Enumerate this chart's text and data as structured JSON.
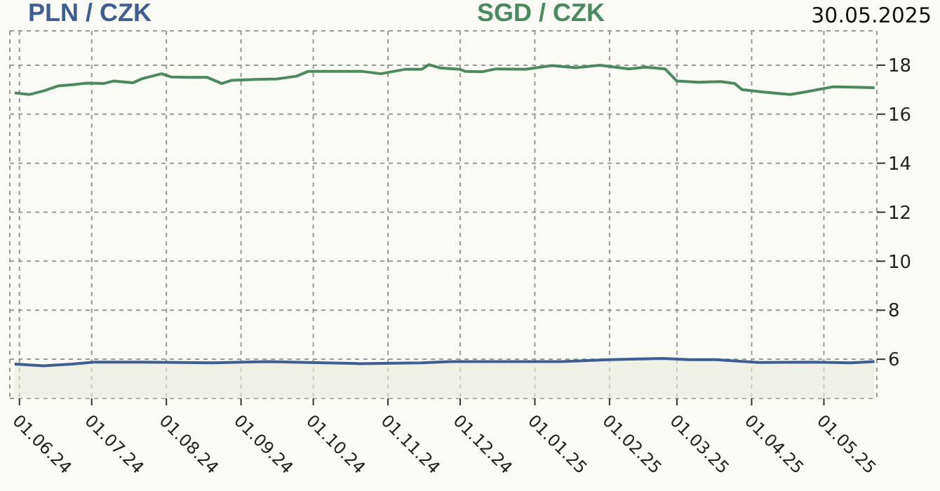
{
  "chart_data": {
    "type": "line",
    "annotations": [
      "30.05.2025"
    ],
    "series": [
      {
        "name": "PLN / CZK",
        "color": "#3f5f93",
        "type": "area",
        "x": [
          "2024-05-30",
          "2024-06-11",
          "2024-06-23",
          "2024-07-02",
          "2024-07-22",
          "2024-08-20",
          "2024-09-12",
          "2024-10-20",
          "2024-11-15",
          "2024-11-27",
          "2025-01-12",
          "2025-02-01",
          "2025-02-23",
          "2025-03-06",
          "2025-03-17",
          "2025-04-04",
          "2025-04-27",
          "2025-05-12",
          "2025-05-22"
        ],
        "values": [
          5.8,
          5.73,
          5.8,
          5.88,
          5.88,
          5.85,
          5.9,
          5.82,
          5.85,
          5.9,
          5.9,
          5.98,
          6.03,
          5.98,
          5.98,
          5.87,
          5.88,
          5.85,
          5.9
        ]
      },
      {
        "name": "SGD / CZK",
        "color": "#4a8a5e",
        "x": [
          "2024-05-30",
          "2024-06-05",
          "2024-06-11",
          "2024-06-17",
          "2024-06-23",
          "2024-06-29",
          "2024-07-06",
          "2024-07-10",
          "2024-07-18",
          "2024-07-22",
          "2024-07-30",
          "2024-08-03",
          "2024-08-10",
          "2024-08-18",
          "2024-08-24",
          "2024-08-28",
          "2024-09-07",
          "2024-09-16",
          "2024-09-24",
          "2024-09-29",
          "2024-10-07",
          "2024-10-21",
          "2024-10-29",
          "2024-11-08",
          "2024-11-15",
          "2024-11-18",
          "2024-11-23",
          "2024-12-01",
          "2024-12-03",
          "2024-12-10",
          "2024-12-16",
          "2024-12-28",
          "2025-01-08",
          "2025-01-18",
          "2025-01-28",
          "2025-02-09",
          "2025-02-16",
          "2025-02-24",
          "2025-03-01",
          "2025-03-10",
          "2025-03-19",
          "2025-03-25",
          "2025-03-28",
          "2025-04-06",
          "2025-04-17",
          "2025-04-23",
          "2025-05-05",
          "2025-05-13",
          "2025-05-22"
        ],
        "values": [
          16.87,
          16.8,
          16.95,
          17.15,
          17.2,
          17.27,
          17.25,
          17.35,
          17.28,
          17.45,
          17.65,
          17.52,
          17.5,
          17.5,
          17.25,
          17.38,
          17.42,
          17.44,
          17.55,
          17.75,
          17.75,
          17.75,
          17.65,
          17.83,
          17.83,
          18.02,
          17.88,
          17.83,
          17.75,
          17.73,
          17.85,
          17.83,
          17.98,
          17.9,
          18.0,
          17.85,
          17.92,
          17.85,
          17.35,
          17.3,
          17.33,
          17.25,
          17.0,
          16.9,
          16.8,
          16.9,
          17.12,
          17.1,
          17.08
        ]
      }
    ],
    "xlim": [
      "2024-05-28",
      "2025-05-23"
    ],
    "xticks": [
      {
        "value": "2024-06-01",
        "label": "01.06.24"
      },
      {
        "value": "2024-07-01",
        "label": "01.07.24"
      },
      {
        "value": "2024-08-01",
        "label": "01.08.24"
      },
      {
        "value": "2024-09-01",
        "label": "01.09.24"
      },
      {
        "value": "2024-10-01",
        "label": "01.10.24"
      },
      {
        "value": "2024-11-01",
        "label": "01.11.24"
      },
      {
        "value": "2024-12-01",
        "label": "01.12.24"
      },
      {
        "value": "2025-01-01",
        "label": "01.01.25"
      },
      {
        "value": "2025-02-01",
        "label": "01.02.25"
      },
      {
        "value": "2025-03-01",
        "label": "01.03.25"
      },
      {
        "value": "2025-04-01",
        "label": "01.04.25"
      },
      {
        "value": "2025-05-01",
        "label": "01.05.25"
      }
    ],
    "ylim": [
      4.4,
      19.4
    ],
    "yticks": [
      6,
      8,
      10,
      12,
      14,
      16,
      18
    ],
    "grid": true,
    "legend": "top",
    "marker": "none",
    "line_style": "solid"
  }
}
